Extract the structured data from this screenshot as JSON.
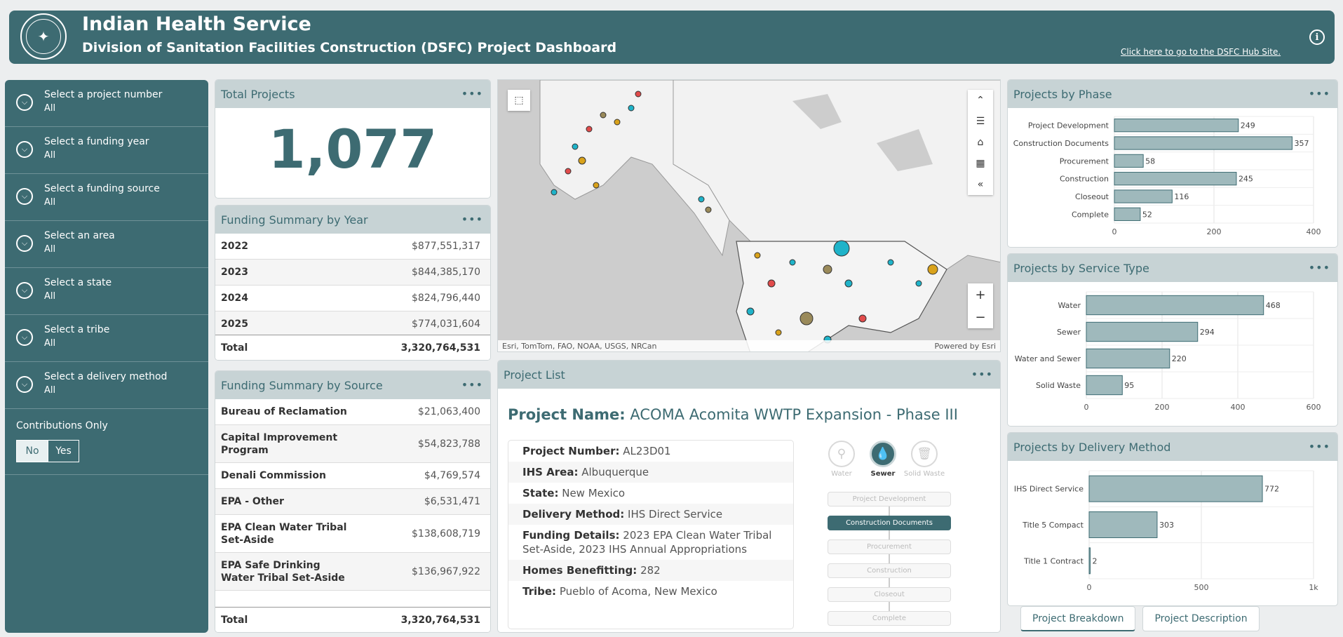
{
  "header": {
    "title": "Indian Health Service",
    "subtitle": "Division of Sanitation Facilities Construction (DSFC) Project Dashboard",
    "hub_link": "Click here to go to the DSFC Hub Site.",
    "logo_icon": "ihs-seal-logo",
    "info_icon": "info-icon"
  },
  "filters": [
    {
      "label": "Select a project number",
      "value": "All"
    },
    {
      "label": "Select a funding year",
      "value": "All"
    },
    {
      "label": "Select a funding source",
      "value": "All"
    },
    {
      "label": "Select an area",
      "value": "All"
    },
    {
      "label": "Select a state",
      "value": "All"
    },
    {
      "label": "Select a tribe",
      "value": "All"
    },
    {
      "label": "Select a delivery method",
      "value": "All"
    }
  ],
  "contributions": {
    "label": "Contributions Only",
    "no": "No",
    "yes": "Yes",
    "selected": "No"
  },
  "total_projects": {
    "title": "Total Projects",
    "value": "1,077"
  },
  "funding_year": {
    "title": "Funding Summary by Year",
    "rows": [
      {
        "year": "2022",
        "amount": "$877,551,317"
      },
      {
        "year": "2023",
        "amount": "$844,385,170"
      },
      {
        "year": "2024",
        "amount": "$824,796,440"
      },
      {
        "year": "2025",
        "amount": "$774,031,604"
      }
    ],
    "total_label": "Total",
    "total_value": "3,320,764,531"
  },
  "funding_source": {
    "title": "Funding Summary by Source",
    "rows": [
      {
        "source": "Bureau of Reclamation",
        "amount": "$21,063,400"
      },
      {
        "source": "Capital Improvement Program",
        "amount": "$54,823,788"
      },
      {
        "source": "Denali Commission",
        "amount": "$4,769,574"
      },
      {
        "source": "EPA - Other",
        "amount": "$6,531,471"
      },
      {
        "source": "EPA Clean Water Tribal Set-Aside",
        "amount": "$138,608,719"
      },
      {
        "source": "EPA Safe Drinking Water Tribal Set-Aside",
        "amount": "$136,967,922"
      }
    ],
    "total_label": "Total",
    "total_value": "3,320,764,531"
  },
  "map": {
    "attribution": "Esri, TomTom, FAO, NOAA, USGS, NRCan",
    "powered": "Powered by Esri",
    "zoom_in": "+",
    "zoom_out": "−"
  },
  "project_list": {
    "title": "Project List",
    "name_label": "Project Name:",
    "name_value": "ACOMA Acomita WWTP Expansion - Phase III",
    "details": [
      {
        "label": "Project Number:",
        "value": "AL23D01"
      },
      {
        "label": "IHS Area:",
        "value": "Albuquerque"
      },
      {
        "label": "State:",
        "value": "New Mexico"
      },
      {
        "label": "Delivery Method:",
        "value": "IHS Direct Service"
      },
      {
        "label": "Funding Details:",
        "value": "2023 EPA Clean Water Tribal Set-Aside, 2023 IHS Annual Appropriations"
      },
      {
        "label": "Homes Benefitting:",
        "value": "282"
      },
      {
        "label": "Tribe:",
        "value": "Pueblo of Acoma, New Mexico"
      }
    ],
    "services": [
      {
        "label": "Water",
        "icon": "faucet-icon",
        "active": false
      },
      {
        "label": "Sewer",
        "icon": "water-drop-icon",
        "active": true
      },
      {
        "label": "Solid Waste",
        "icon": "trash-icon",
        "active": false
      }
    ],
    "phases": [
      "Project Development",
      "Construction Documents",
      "Procurement",
      "Construction",
      "Closeout",
      "Complete"
    ],
    "active_phase": "Construction Documents"
  },
  "tabs": [
    "Project Breakdown",
    "Project Description"
  ],
  "chart_data": [
    {
      "type": "bar",
      "orientation": "horizontal",
      "title": "Projects by Phase",
      "categories": [
        "Project Development",
        "Construction Documents",
        "Procurement",
        "Construction",
        "Closeout",
        "Complete"
      ],
      "values": [
        249,
        357,
        58,
        245,
        116,
        52
      ],
      "xlim": [
        0,
        400
      ],
      "ticks": [
        0,
        200,
        400
      ],
      "color": "#9fb9bc"
    },
    {
      "type": "bar",
      "orientation": "horizontal",
      "title": "Projects by Service Type",
      "categories": [
        "Water",
        "Sewer",
        "Water and Sewer",
        "Solid Waste"
      ],
      "values": [
        468,
        294,
        220,
        95
      ],
      "xlim": [
        0,
        600
      ],
      "ticks": [
        0,
        200,
        400,
        600
      ],
      "color": "#9fb9bc"
    },
    {
      "type": "bar",
      "orientation": "horizontal",
      "title": "Projects by Delivery Method",
      "categories": [
        "IHS Direct Service",
        "Title 5 Compact",
        "Title 1 Contract"
      ],
      "values": [
        772,
        303,
        2
      ],
      "xlim": [
        0,
        1000
      ],
      "ticks": [
        0,
        500,
        1000
      ],
      "tick_labels": [
        "0",
        "500",
        "1k"
      ],
      "color": "#9fb9bc"
    }
  ]
}
